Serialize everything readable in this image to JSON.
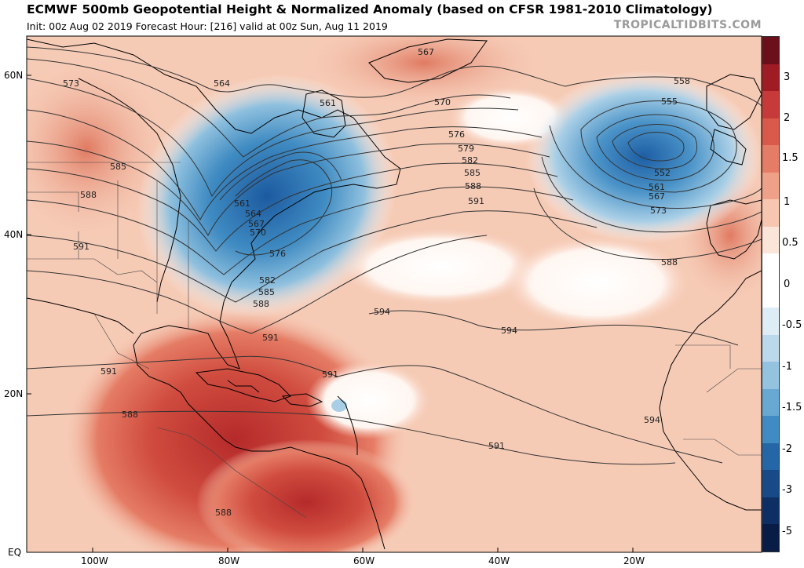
{
  "header": {
    "title": "ECMWF 500mb Geopotential Height & Normalized Anomaly (based on CFSR 1981-2010 Climatology)",
    "subtitle": "Init: 00z Aug 02 2019   Forecast Hour: [216]   valid at 00z Sun, Aug 11 2019",
    "brand": "TROPICALTIDBITS.COM"
  },
  "axes": {
    "lat_labels": [
      "60N",
      "40N",
      "20N",
      "EQ"
    ],
    "lon_labels": [
      "100W",
      "80W",
      "60W",
      "40W",
      "20W"
    ]
  },
  "colorbar": {
    "labels": [
      "3",
      "2",
      "1.5",
      "1",
      "0.5",
      "0",
      "-0.5",
      "-1",
      "-1.5",
      "-2",
      "-3",
      "-5"
    ],
    "colors": [
      "#6b0f1c",
      "#a01c25",
      "#c63a39",
      "#d95a4b",
      "#e57c65",
      "#efa088",
      "#f7c6b0",
      "#fbe4d8",
      "#ffffff",
      "#ffffff",
      "#deecf6",
      "#bcd8eb",
      "#94c3e0",
      "#68a9d2",
      "#3f8bc2",
      "#2566a6",
      "#174a86",
      "#0e2f63",
      "#081c45"
    ]
  },
  "contour_labels": [
    "573",
    "564",
    "567",
    "561",
    "558",
    "555",
    "552",
    "570",
    "576",
    "579",
    "582",
    "585",
    "588",
    "591",
    "594",
    "588",
    "591",
    "594",
    "591",
    "591",
    "594",
    "591",
    "588",
    "588",
    "561",
    "564",
    "567",
    "570",
    "576",
    "582",
    "585",
    "588",
    "591",
    "573",
    "567",
    "561",
    "585",
    "588"
  ],
  "map": {
    "ocean_anomaly_color": "#f6c9b4",
    "warm_core_color": "#c6362f",
    "trough_color": "#2f73b6",
    "land_outline_color": "#000000",
    "contour_color": "#333333"
  }
}
